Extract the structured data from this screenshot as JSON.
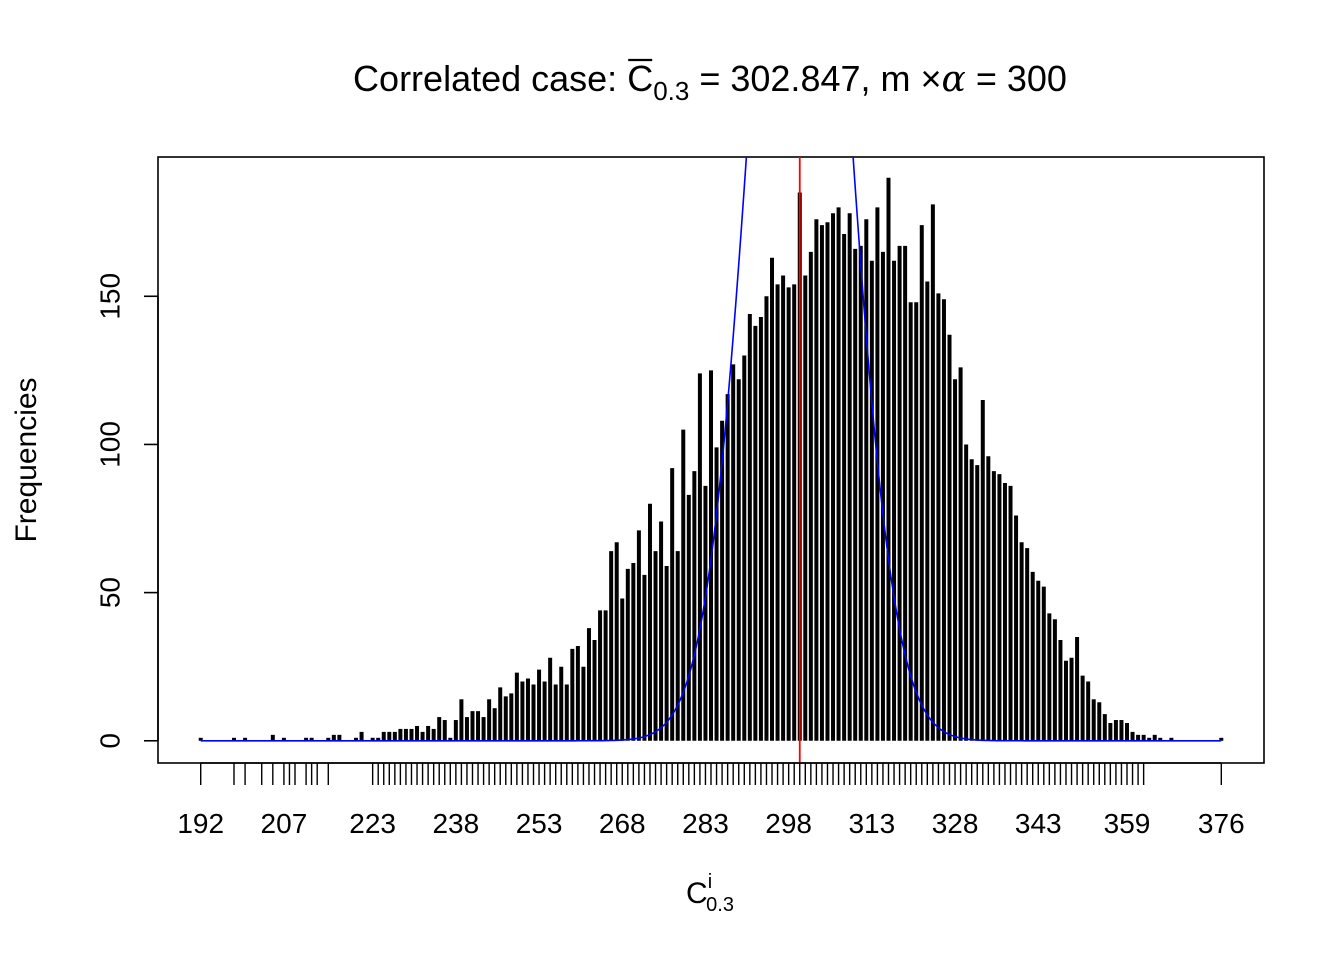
{
  "chart_data": {
    "type": "bar",
    "title": {
      "prefix": "Correlated case: ",
      "symbol": "C",
      "symbol_sub": "0.3",
      "eq1": " = 302.847, m ",
      "times": "×",
      "alpha": "α",
      "eq2": " = 300"
    },
    "xlabel": {
      "main": "C",
      "sup": "i",
      "sub": "0.3"
    },
    "ylabel": "Frequencies",
    "xlim": [
      184.3,
      383.7
    ],
    "ylim": [
      -7.5,
      197.0
    ],
    "yticks": [
      0,
      50,
      100,
      150
    ],
    "xtick_labels": [
      192,
      207,
      223,
      238,
      253,
      268,
      283,
      298,
      313,
      328,
      343,
      359,
      376
    ],
    "x_minor_ticks": [
      192,
      198,
      200,
      203,
      205,
      207,
      208,
      209,
      211,
      212,
      213,
      215,
      223,
      224,
      225,
      226,
      227,
      228,
      229,
      230,
      231,
      232,
      233,
      234,
      235,
      236,
      237,
      238,
      239,
      240,
      241,
      242,
      243,
      244,
      245,
      246,
      247,
      248,
      249,
      250,
      251,
      252,
      253,
      254,
      255,
      256,
      257,
      258,
      259,
      260,
      261,
      262,
      263,
      264,
      265,
      266,
      267,
      268,
      269,
      270,
      271,
      272,
      273,
      274,
      275,
      276,
      277,
      278,
      279,
      280,
      281,
      282,
      283,
      284,
      285,
      286,
      287,
      288,
      289,
      290,
      291,
      292,
      293,
      294,
      295,
      296,
      297,
      298,
      299,
      300,
      301,
      302,
      303,
      304,
      305,
      306,
      307,
      308,
      309,
      310,
      311,
      312,
      313,
      314,
      315,
      316,
      317,
      318,
      319,
      320,
      321,
      322,
      323,
      324,
      325,
      326,
      327,
      328,
      329,
      330,
      331,
      332,
      333,
      334,
      335,
      336,
      337,
      338,
      339,
      340,
      341,
      342,
      343,
      344,
      345,
      346,
      347,
      348,
      349,
      350,
      351,
      352,
      353,
      354,
      355,
      356,
      357,
      358,
      359,
      360,
      361,
      362,
      376
    ],
    "bars": {
      "x": [
        192,
        198,
        200,
        205,
        207,
        211,
        212,
        215,
        216,
        217,
        220,
        221,
        223,
        224,
        225,
        226,
        227,
        228,
        229,
        230,
        231,
        232,
        233,
        234,
        235,
        236,
        237,
        238,
        239,
        240,
        241,
        242,
        243,
        244,
        245,
        246,
        247,
        248,
        249,
        250,
        251,
        252,
        253,
        254,
        255,
        256,
        257,
        258,
        259,
        260,
        261,
        262,
        263,
        264,
        265,
        266,
        267,
        268,
        269,
        270,
        271,
        272,
        273,
        274,
        275,
        276,
        277,
        278,
        279,
        280,
        281,
        282,
        283,
        284,
        285,
        286,
        287,
        288,
        289,
        290,
        291,
        292,
        293,
        294,
        295,
        296,
        297,
        298,
        299,
        300,
        301,
        302,
        303,
        304,
        305,
        306,
        307,
        308,
        309,
        310,
        311,
        312,
        313,
        314,
        315,
        316,
        317,
        318,
        319,
        320,
        321,
        322,
        323,
        324,
        325,
        326,
        327,
        328,
        329,
        330,
        331,
        332,
        333,
        334,
        335,
        336,
        337,
        338,
        339,
        340,
        341,
        342,
        343,
        344,
        345,
        346,
        347,
        348,
        349,
        350,
        351,
        352,
        353,
        354,
        355,
        356,
        357,
        358,
        359,
        360,
        361,
        362,
        363,
        364,
        365,
        367,
        376
      ],
      "values": [
        1,
        1,
        1,
        2,
        1,
        1,
        1,
        1,
        2,
        2,
        1,
        3,
        1,
        1,
        3,
        3,
        3,
        4,
        4,
        4,
        5,
        3,
        5,
        4,
        8,
        7,
        1,
        7,
        14,
        8,
        10,
        10,
        8,
        14,
        11,
        18,
        15,
        16,
        23,
        20,
        21,
        19,
        24,
        20,
        28,
        19,
        25,
        19,
        31,
        32,
        25,
        38,
        34,
        44,
        44,
        64,
        67,
        48,
        58,
        60,
        71,
        56,
        80,
        64,
        74,
        59,
        92,
        64,
        105,
        83,
        91,
        124,
        86,
        125,
        99,
        108,
        117,
        127,
        122,
        130,
        144,
        140,
        143,
        150,
        163,
        154,
        157,
        153,
        154,
        185,
        157,
        165,
        176,
        174,
        175,
        178,
        180,
        171,
        178,
        166,
        167,
        176,
        162,
        180,
        165,
        190,
        162,
        167,
        167,
        148,
        148,
        174,
        155,
        181,
        151,
        149,
        137,
        122,
        126,
        100,
        95,
        93,
        115,
        96,
        91,
        90,
        87,
        86,
        76,
        67,
        65,
        57,
        54,
        52,
        43,
        41,
        34,
        27,
        28,
        35,
        22,
        20,
        14,
        13,
        9,
        6,
        7,
        7,
        6,
        3,
        2,
        2,
        1,
        2,
        1,
        1,
        1
      ]
    },
    "normal_curve": {
      "mean": 300,
      "sd": 8.367,
      "total": 8000
    },
    "vline_x": 300,
    "colors": {
      "bars": "#000000",
      "curve": "#0000ff",
      "vline": "#ff0000"
    },
    "grid": false,
    "legend": "none"
  }
}
